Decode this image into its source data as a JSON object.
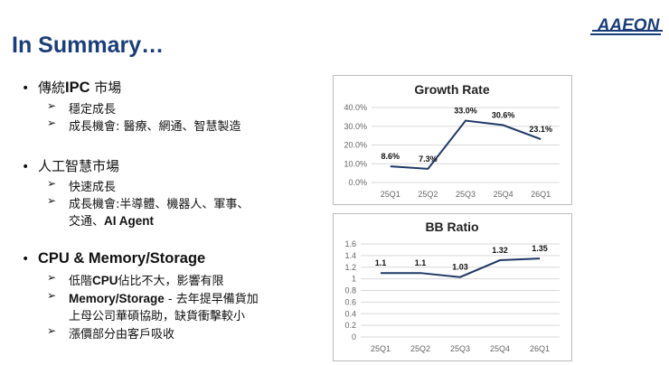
{
  "slide": {
    "title": "In Summary…"
  },
  "logo": {
    "text": "AAEON"
  },
  "sections": [
    {
      "heading_zh": "傳統",
      "heading_en": "IPC",
      "heading_zh2": " 市場",
      "items": [
        {
          "text": "穩定成長"
        },
        {
          "text": "成長機會: 醫療、網通、智慧製造"
        }
      ]
    },
    {
      "heading_zh": "人工智慧市場",
      "heading_en": "",
      "heading_zh2": "",
      "items": [
        {
          "text": "快速成長"
        },
        {
          "text": "成長機會:半導體、機器人、軍事、",
          "text2": "交通、",
          "text2_en": "AI Agent"
        }
      ]
    },
    {
      "heading_zh": "",
      "heading_en": "CPU & Memory/Storage",
      "heading_zh2": "",
      "items": [
        {
          "pre": " 低階",
          "en": "CPU",
          "text": "佔比不大，影響有限"
        },
        {
          "en": "Memory/Storage",
          "text": " - 去年提早備貨加",
          "text2": "上母公司華碩協助，缺貨衝擊較小"
        },
        {
          "text": "漲價部分由客戶吸收"
        }
      ]
    }
  ],
  "chart_data": [
    {
      "type": "line",
      "title": "Growth Rate",
      "categories": [
        "25Q1",
        "25Q2",
        "25Q3",
        "25Q4",
        "26Q1"
      ],
      "values": [
        8.6,
        7.3,
        33.0,
        30.6,
        23.1
      ],
      "data_labels": [
        "8.6%",
        "7.3%",
        "33.0%",
        "30.6%",
        "23.1%"
      ],
      "yticks": [
        "0.0%",
        "10.0%",
        "20.0%",
        "30.0%",
        "40.0%"
      ],
      "ylim": [
        0,
        40
      ],
      "grid": true,
      "color": "#1f3864"
    },
    {
      "type": "line",
      "title": "BB Ratio",
      "categories": [
        "25Q1",
        "25Q2",
        "25Q3",
        "25Q4",
        "26Q1"
      ],
      "values": [
        1.1,
        1.1,
        1.03,
        1.32,
        1.35
      ],
      "data_labels": [
        "1.1",
        "1.1",
        "1.03",
        "1.32",
        "1.35"
      ],
      "yticks": [
        "0",
        "0.2",
        "0.4",
        "0.6",
        "0.8",
        "1",
        "1.2",
        "1.4",
        "1.6"
      ],
      "ylim": [
        0,
        1.6
      ],
      "grid": true,
      "color": "#1f3864"
    }
  ]
}
